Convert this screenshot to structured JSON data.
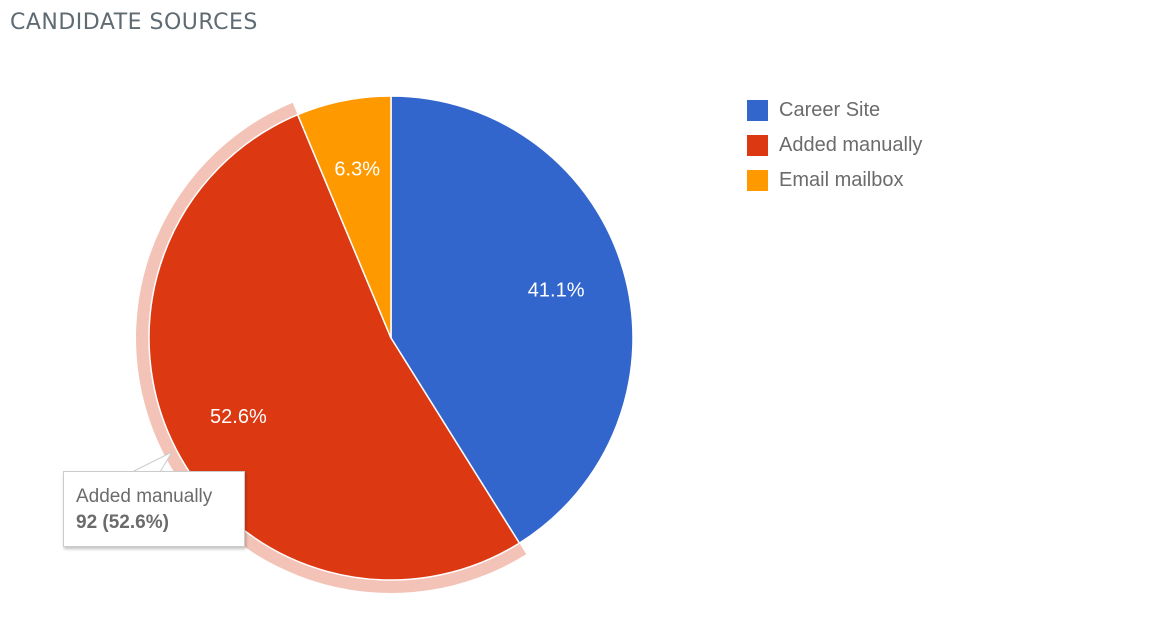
{
  "header": {
    "title": "CANDIDATE SOURCES"
  },
  "chart_data": {
    "type": "pie",
    "title": "CANDIDATE SOURCES",
    "legend_placement": "right",
    "start_angle_deg": 0,
    "slices": [
      {
        "name": "Career Site",
        "percent": 41.1,
        "label": "41.1%",
        "color": "#3366cc"
      },
      {
        "name": "Added manually",
        "percent": 52.6,
        "label": "52.6%",
        "color": "#dc3912",
        "highlighted": true
      },
      {
        "name": "Email mailbox",
        "percent": 6.3,
        "label": "6.3%",
        "color": "#ff9900"
      }
    ],
    "tooltip": {
      "name": "Added manually",
      "value_text": "92 (52.6%)"
    }
  }
}
